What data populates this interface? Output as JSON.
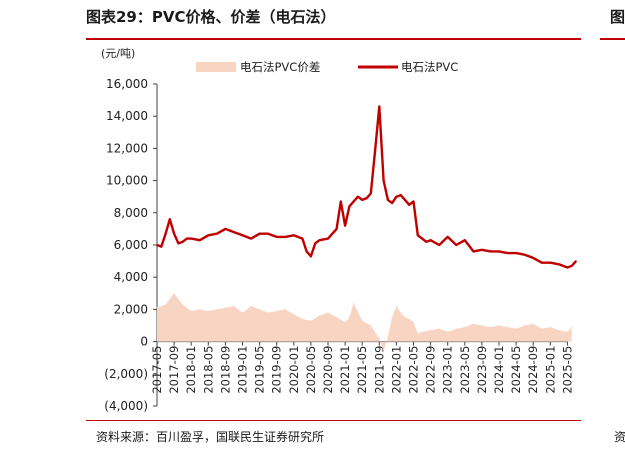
{
  "header": {
    "title": "图表29：PVC价格、价差（电石法）",
    "edge_char": "图"
  },
  "footer": {
    "source": "资料来源：百川盈孚，国联民生证券研究所",
    "edge_char": "资"
  },
  "chart_data": {
    "type": "line+area",
    "unit_label": "(元/吨)",
    "y_ticks": [
      "16,000",
      "14,000",
      "12,000",
      "10,000",
      "8,000",
      "6,000",
      "4,000",
      "2,000",
      "0",
      "(2,000)",
      "(4,000)"
    ],
    "ylim": [
      -4000,
      16000
    ],
    "x_ticks": [
      "2017-05",
      "2017-09",
      "2018-01",
      "2018-05",
      "2018-09",
      "2019-01",
      "2019-05",
      "2019-09",
      "2020-01",
      "2020-05",
      "2020-09",
      "2021-01",
      "2021-05",
      "2021-09",
      "2022-01",
      "2022-05",
      "2022-09",
      "2023-01",
      "2023-05",
      "2023-09",
      "2024-01",
      "2024-05",
      "2024-09",
      "2025-01",
      "2025-05"
    ],
    "legend_position": "top",
    "colors": {
      "price": "#c00000",
      "spread": "#f8d5c2"
    },
    "series": [
      {
        "name": "电石法PVC价差",
        "style": "area",
        "x": [
          "2017-05",
          "2017-07",
          "2017-09",
          "2017-11",
          "2018-01",
          "2018-03",
          "2018-05",
          "2018-07",
          "2018-09",
          "2018-11",
          "2019-01",
          "2019-03",
          "2019-05",
          "2019-07",
          "2019-09",
          "2019-11",
          "2020-01",
          "2020-03",
          "2020-05",
          "2020-07",
          "2020-09",
          "2020-11",
          "2021-01",
          "2021-02",
          "2021-03",
          "2021-05",
          "2021-07",
          "2021-09",
          "2021-10",
          "2021-11",
          "2021-12",
          "2022-01",
          "2022-02",
          "2022-03",
          "2022-04",
          "2022-05",
          "2022-06",
          "2022-07",
          "2022-09",
          "2022-11",
          "2023-01",
          "2023-03",
          "2023-05",
          "2023-07",
          "2023-09",
          "2023-11",
          "2024-01",
          "2024-03",
          "2024-05",
          "2024-07",
          "2024-09",
          "2024-11",
          "2025-01",
          "2025-03",
          "2025-05",
          "2025-06"
        ],
        "values": [
          2100,
          2300,
          3000,
          2300,
          1900,
          2000,
          1900,
          2000,
          2100,
          2200,
          1800,
          2200,
          2000,
          1800,
          1900,
          2000,
          1700,
          1400,
          1300,
          1600,
          1800,
          1500,
          1200,
          1500,
          2400,
          1300,
          1000,
          200,
          -600,
          300,
          1500,
          2200,
          1800,
          1500,
          1400,
          1200,
          500,
          600,
          700,
          800,
          600,
          800,
          900,
          1100,
          1000,
          900,
          1000,
          900,
          800,
          1000,
          1100,
          800,
          900,
          700,
          600,
          900
        ]
      },
      {
        "name": "电石法PVC",
        "style": "line",
        "x": [
          "2017-05",
          "2017-06",
          "2017-07",
          "2017-08",
          "2017-09",
          "2017-10",
          "2017-11",
          "2017-12",
          "2018-01",
          "2018-03",
          "2018-05",
          "2018-07",
          "2018-09",
          "2018-11",
          "2019-01",
          "2019-03",
          "2019-05",
          "2019-07",
          "2019-09",
          "2019-11",
          "2020-01",
          "2020-03",
          "2020-04",
          "2020-05",
          "2020-06",
          "2020-07",
          "2020-09",
          "2020-11",
          "2020-12",
          "2021-01",
          "2021-02",
          "2021-03",
          "2021-04",
          "2021-05",
          "2021-06",
          "2021-07",
          "2021-08",
          "2021-09",
          "2021-10",
          "2021-11",
          "2021-12",
          "2022-01",
          "2022-02",
          "2022-03",
          "2022-04",
          "2022-05",
          "2022-06",
          "2022-07",
          "2022-08",
          "2022-09",
          "2022-11",
          "2023-01",
          "2023-03",
          "2023-05",
          "2023-07",
          "2023-09",
          "2023-11",
          "2024-01",
          "2024-03",
          "2024-05",
          "2024-07",
          "2024-09",
          "2024-11",
          "2025-01",
          "2025-03",
          "2025-04",
          "2025-05",
          "2025-06",
          "2025-07"
        ],
        "values": [
          6000,
          5900,
          6700,
          7600,
          6700,
          6100,
          6200,
          6400,
          6400,
          6300,
          6600,
          6700,
          7000,
          6800,
          6600,
          6400,
          6700,
          6700,
          6500,
          6500,
          6600,
          6400,
          5600,
          5300,
          6100,
          6300,
          6400,
          7000,
          8700,
          7200,
          8400,
          8700,
          9000,
          8800,
          8900,
          9200,
          11800,
          14600,
          10000,
          8800,
          8600,
          9000,
          9100,
          8800,
          8500,
          8700,
          6600,
          6400,
          6200,
          6300,
          6000,
          6500,
          6000,
          6300,
          5600,
          5700,
          5600,
          5600,
          5500,
          5500,
          5400,
          5200,
          4900,
          4900,
          4800,
          4700,
          4600,
          4700,
          5000
        ]
      }
    ]
  }
}
